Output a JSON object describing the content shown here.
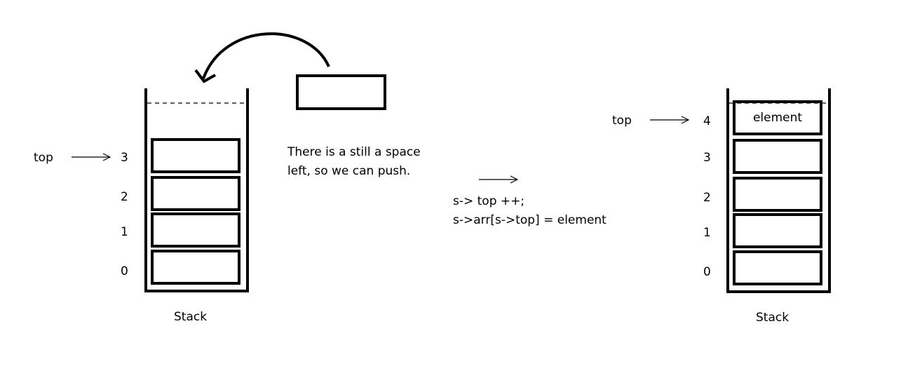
{
  "left_stack": {
    "caption": "Stack",
    "top_label": "top",
    "indices": [
      "3",
      "2",
      "1",
      "0"
    ]
  },
  "incoming_element": {
    "note_lines": [
      "There is a still a space",
      "left, so we can push."
    ]
  },
  "transition": {
    "code_lines": [
      "s-> top ++;",
      "s->arr[s->top] = element"
    ]
  },
  "right_stack": {
    "caption": "Stack",
    "top_label": "top",
    "indices": [
      "4",
      "3",
      "2",
      "1",
      "0"
    ],
    "top_cell_label": "element"
  }
}
